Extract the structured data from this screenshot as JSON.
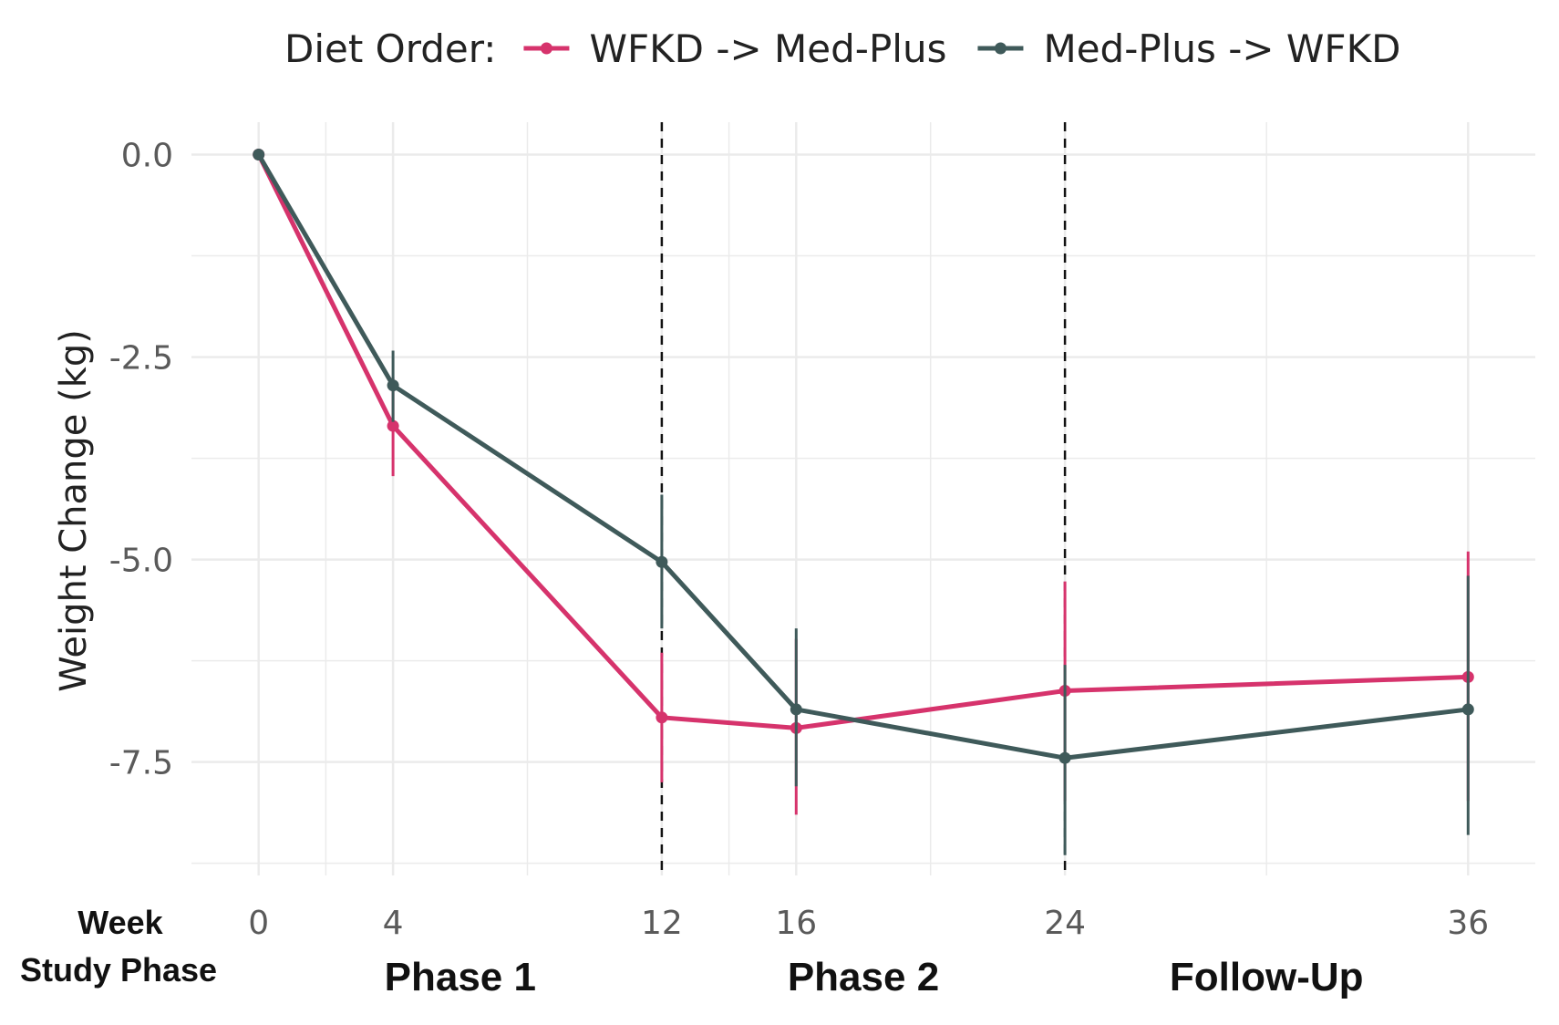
{
  "chart_data": {
    "type": "line",
    "title": "",
    "xlabel": "",
    "ylabel": "Weight Change (kg)",
    "x": [
      0,
      4,
      12,
      16,
      24,
      36
    ],
    "x_ticks": [
      "0",
      "4",
      "12",
      "16",
      "24",
      "36"
    ],
    "xlim": [
      -2,
      38
    ],
    "ylim": [
      -8.9,
      0.4
    ],
    "y_ticks": [
      "0.0",
      "-2.5",
      "-5.0",
      "-7.5"
    ],
    "y_tick_values": [
      0,
      -2.5,
      -5.0,
      -7.5
    ],
    "grid": true,
    "vlines": [
      12,
      24
    ],
    "legend": {
      "title": "Diet Order:",
      "position": "top"
    },
    "series": [
      {
        "name": "WFKD -> Med-Plus",
        "color": "#d6336c",
        "values": [
          0.0,
          -3.35,
          -6.95,
          -7.08,
          -6.62,
          -6.45
        ],
        "error_low": [
          0.0,
          -3.97,
          -7.75,
          -8.15,
          -7.98,
          -7.98
        ],
        "error_high": [
          0.0,
          -2.75,
          -6.15,
          -5.98,
          -5.27,
          -4.9
        ]
      },
      {
        "name": "Med-Plus -> WFKD",
        "color": "#3f5a5a",
        "values": [
          0.0,
          -2.85,
          -5.03,
          -6.85,
          -7.45,
          -6.85
        ],
        "error_low": [
          0.0,
          -3.3,
          -5.85,
          -7.8,
          -8.65,
          -8.4
        ],
        "error_high": [
          0.0,
          -2.42,
          -4.2,
          -5.85,
          -6.3,
          -5.2
        ]
      }
    ],
    "row_labels": {
      "week": "Week",
      "study_phase": "Study Phase"
    },
    "phases": [
      {
        "label": "Phase 1",
        "center_week": 6
      },
      {
        "label": "Phase 2",
        "center_week": 18
      },
      {
        "label": "Follow-Up",
        "center_week": 30
      }
    ]
  }
}
